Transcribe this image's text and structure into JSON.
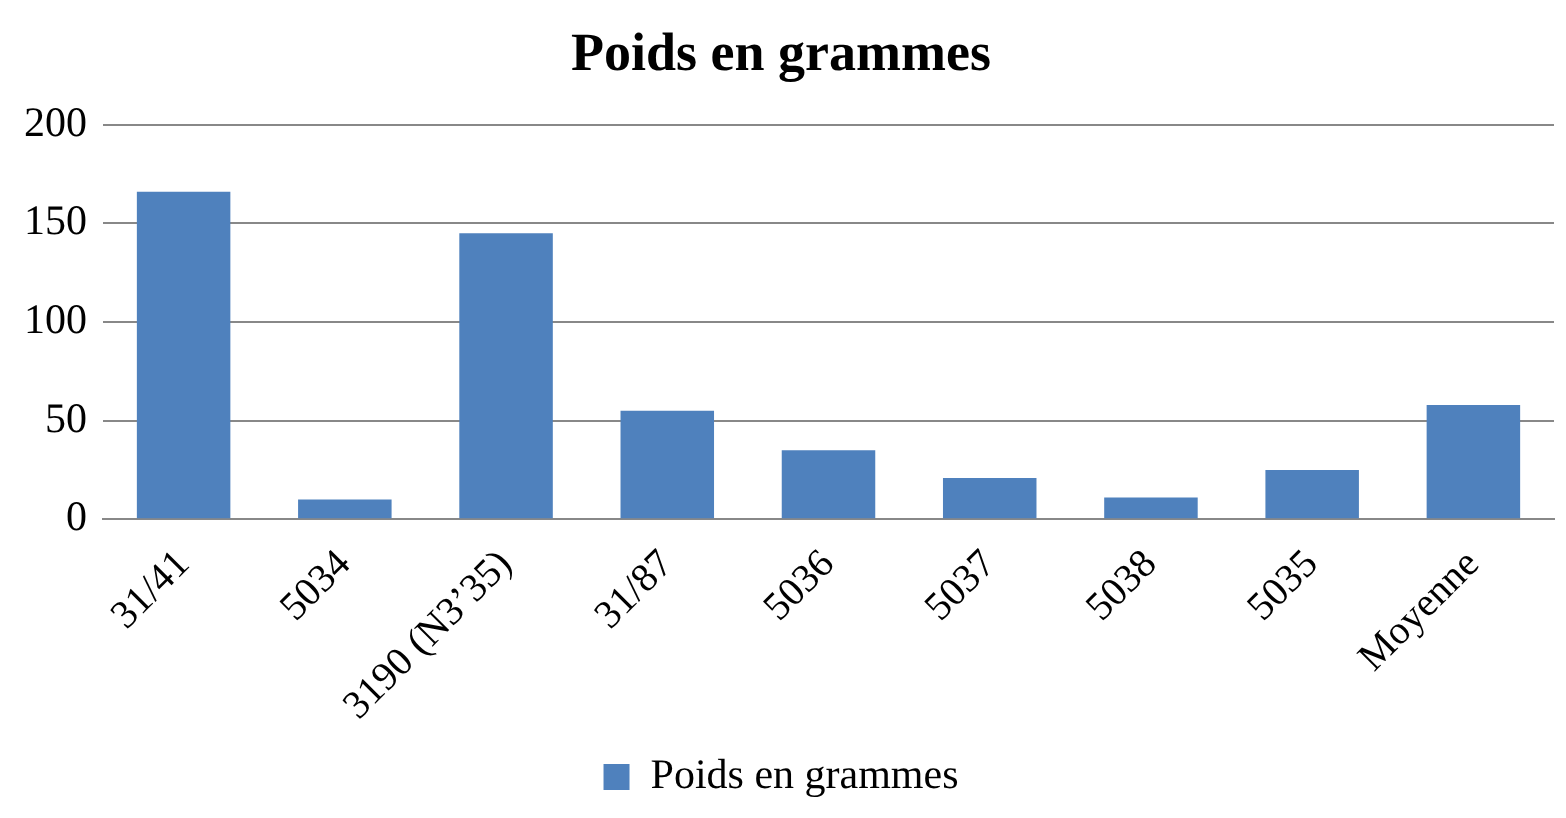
{
  "chart_data": {
    "type": "bar",
    "title": "Poids en grammes",
    "categories": [
      "31/41",
      "5034",
      "3190 (N3’35)",
      "31/87",
      "5036",
      "5037",
      "5038",
      "5035",
      "Moyenne"
    ],
    "series": [
      {
        "name": "Poids en grammes",
        "color": "#4f81bd",
        "values": [
          166,
          10,
          145,
          55,
          35,
          21,
          11,
          25,
          58
        ]
      }
    ],
    "ylim": [
      0,
      200
    ],
    "yticks": [
      0,
      50,
      100,
      150,
      200
    ],
    "grid": "y",
    "legend": "bottom"
  }
}
